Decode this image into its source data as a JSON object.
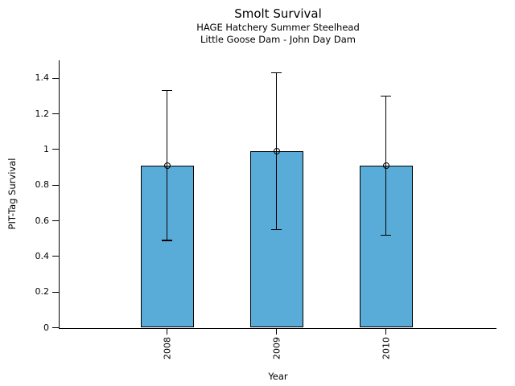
{
  "chart_data": {
    "type": "bar",
    "title": "Smolt Survival",
    "subtitle1": "HAGE Hatchery Summer Steelhead",
    "subtitle2": "Little Goose Dam - John Day Dam",
    "xlabel": "Year",
    "ylabel": "PIT-Tag Survival",
    "categories": [
      "2008",
      "2009",
      "2010"
    ],
    "values": [
      0.91,
      0.99,
      0.91
    ],
    "error_low": [
      0.49,
      0.55,
      0.52
    ],
    "error_high": [
      1.33,
      1.43,
      1.3
    ],
    "ylim": [
      0,
      1.5
    ],
    "yticks": [
      0,
      0.2,
      0.4,
      0.6,
      0.8,
      1,
      1.2,
      1.4
    ],
    "ytick_labels": [
      "0",
      "0.2",
      "0.4",
      "0.6",
      "0.8",
      "1",
      "1.2",
      "1.4"
    ],
    "grid": false,
    "legend": null,
    "bar_color": "#5AACD8",
    "bar_edge_color": "#000000",
    "axis_color": "#000000"
  }
}
